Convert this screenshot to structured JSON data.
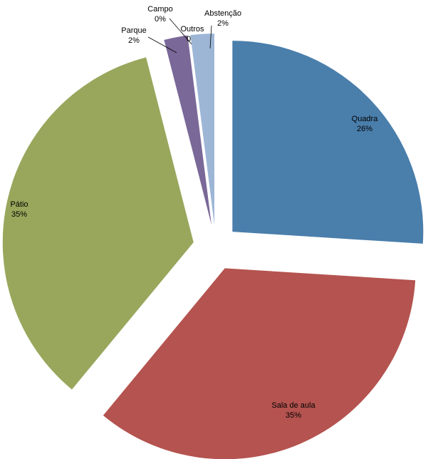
{
  "chart_data": {
    "type": "pie",
    "categories": [
      "Quadra",
      "Sala de aula",
      "Pátio",
      "Parque",
      "Campo",
      "Outros",
      "Abstenção"
    ],
    "values": [
      26,
      35,
      35,
      2,
      0,
      0,
      2
    ],
    "value_labels": [
      "26%",
      "35%",
      "35%",
      "2%",
      "0%",
      "0%",
      "2%"
    ],
    "colors": [
      "#4a7eab",
      "#b4534f",
      "#98a75c",
      "#7a6898",
      "#c07a3c",
      "#5a9aa8",
      "#9db6d6"
    ]
  }
}
